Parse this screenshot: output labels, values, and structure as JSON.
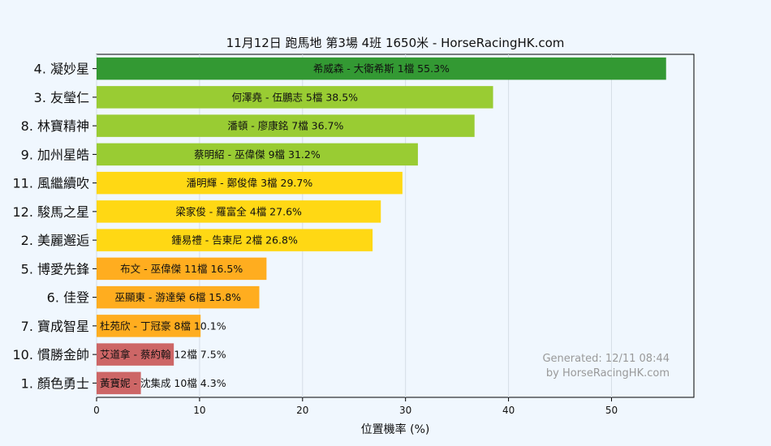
{
  "chart_data": {
    "type": "bar",
    "orientation": "horizontal",
    "title": "11月12日  跑馬地  第3場  4班  1650米 - HorseRacingHK.com",
    "xlabel": "位置機率 (%)",
    "ylabel": "",
    "xlim": [
      0,
      58
    ],
    "xticks": [
      "0",
      "10",
      "20",
      "30",
      "40",
      "50"
    ],
    "grid": "vertical",
    "categories": [
      "4. 凝妙星",
      "3. 友瑩仁",
      "8. 林寶精神",
      "9. 加州星皓",
      "11. 風繼續吹",
      "12. 駿馬之星",
      "2. 美麗邂逅",
      "5. 博愛先鋒",
      "6. 佳登",
      "7. 寶成智星",
      "10. 慣勝金帥",
      "1. 顏色勇士"
    ],
    "values": [
      55.3,
      38.5,
      36.7,
      31.2,
      29.7,
      27.6,
      26.8,
      16.5,
      15.8,
      10.1,
      7.5,
      4.3
    ],
    "labels": [
      "希威森 - 大衛希斯 1檔  55.3%",
      "何澤堯 - 伍鵬志 5檔  38.5%",
      "潘頓 - 廖康銘 7檔  36.7%",
      "蔡明紹 - 巫偉傑 9檔  31.2%",
      "潘明輝 - 鄭俊偉 3檔  29.7%",
      "梁家俊 - 羅富全 4檔  27.6%",
      "鍾易禮 - 告東尼 2檔  26.8%",
      "布文 - 巫偉傑 11檔 16.5%",
      "巫顯東 - 游達榮 6檔  15.8%",
      "杜苑欣 - 丁冠豪 8檔  10.1%",
      "艾道拿 - 蔡約翰 12檔  7.5%",
      "黃寶妮 - 沈集成 10檔  4.3%"
    ],
    "colors": [
      "#339933",
      "#99cc33",
      "#99cc33",
      "#99cc33",
      "#ffd814",
      "#ffd814",
      "#ffd814",
      "#ffad1f",
      "#ffad1f",
      "#ffad1f",
      "#cd6666",
      "#cd6666"
    ]
  },
  "watermark": {
    "line1": "Generated: 12/11 08:44",
    "line2": "by HorseRacingHK.com"
  }
}
